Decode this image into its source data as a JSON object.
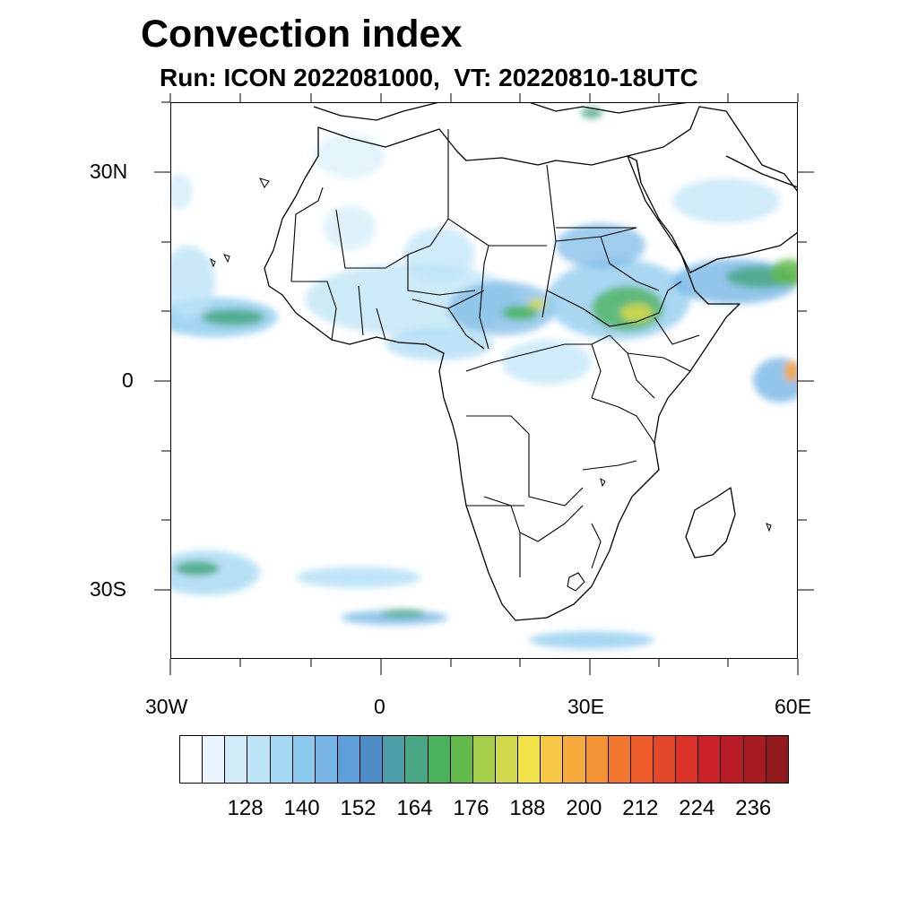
{
  "title": "Convection index",
  "subtitle": "Run: ICON 2022081000,  VT: 20220810-18UTC",
  "axes": {
    "y_labels": [
      "30N",
      "0",
      "30S"
    ],
    "x_labels": [
      "30W",
      "0",
      "30E",
      "60E"
    ]
  },
  "colorbar": {
    "colors": [
      "#ffffff",
      "#e8f5fc",
      "#d2ecf9",
      "#bce3f6",
      "#a5d8f3",
      "#8ccaee",
      "#77b6e6",
      "#5d9ed9",
      "#4c8ec4",
      "#4b9da8",
      "#49a784",
      "#4cb25e",
      "#63b84a",
      "#a6cd4b",
      "#d0d94b",
      "#f2e34b",
      "#f7c745",
      "#f6ab3c",
      "#f49236",
      "#f27830",
      "#ed5e2b",
      "#e44629",
      "#da3129",
      "#cb2129",
      "#b71b25",
      "#a61a22",
      "#921a1f"
    ],
    "labels": [
      "128",
      "140",
      "152",
      "164",
      "176",
      "188",
      "200",
      "212",
      "224",
      "236"
    ]
  }
}
